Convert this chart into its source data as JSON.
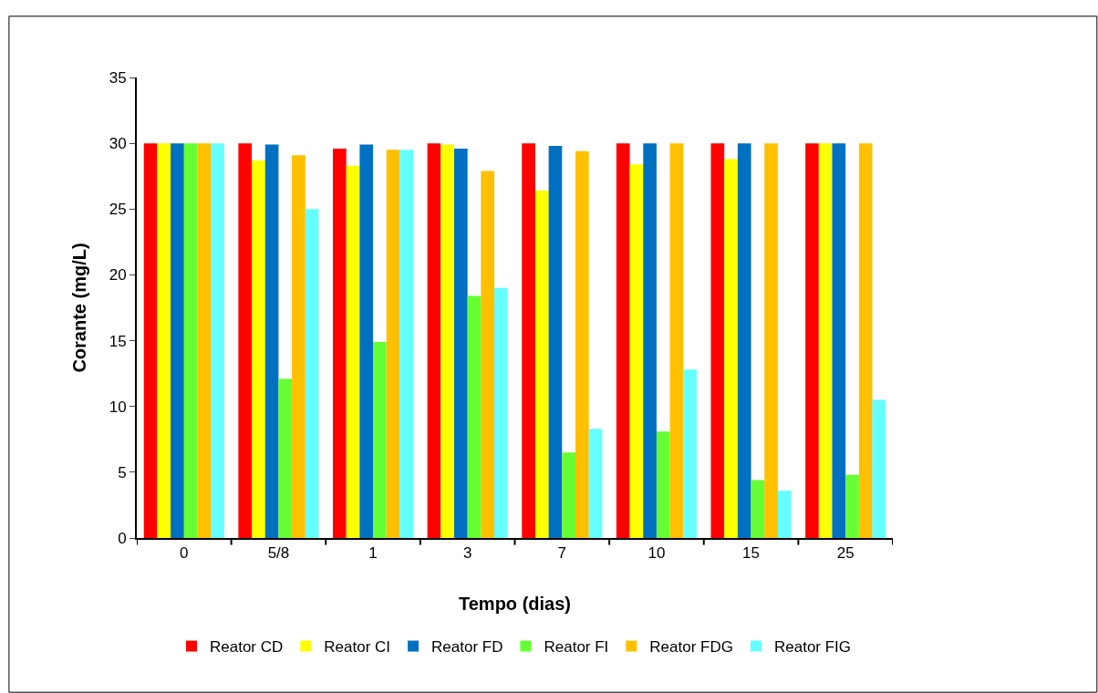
{
  "chart_data": {
    "type": "bar",
    "xlabel": "Tempo (dias)",
    "ylabel": "Corante (mg/L)",
    "categories": [
      "0",
      "5/8",
      "1",
      "3",
      "7",
      "10",
      "15",
      "25"
    ],
    "series": [
      {
        "name": "Reator CD",
        "color": "#ff0000",
        "values": [
          30,
          30,
          29.6,
          30,
          30,
          30,
          30,
          30
        ]
      },
      {
        "name": "Reator CI",
        "color": "#ffff00",
        "values": [
          30,
          28.7,
          28.3,
          29.9,
          26.4,
          28.4,
          28.8,
          30
        ]
      },
      {
        "name": "Reator FD",
        "color": "#0070c0",
        "values": [
          30,
          29.9,
          29.9,
          29.6,
          29.8,
          30,
          30,
          30
        ]
      },
      {
        "name": "Reator FI",
        "color": "#66ff33",
        "values": [
          30,
          12.1,
          14.9,
          18.4,
          6.5,
          8.1,
          4.4,
          4.8
        ]
      },
      {
        "name": "Reator FDG",
        "color": "#ffc000",
        "values": [
          30,
          29.1,
          29.5,
          27.9,
          29.4,
          30,
          30,
          30
        ]
      },
      {
        "name": "Reator FIG",
        "color": "#66ffff",
        "values": [
          30,
          25,
          29.5,
          19,
          8.3,
          12.8,
          3.6,
          10.5
        ]
      }
    ],
    "ylim": [
      0,
      35
    ],
    "yticks": [
      0,
      5,
      10,
      15,
      20,
      25,
      30,
      35
    ],
    "legend": "bottom"
  }
}
